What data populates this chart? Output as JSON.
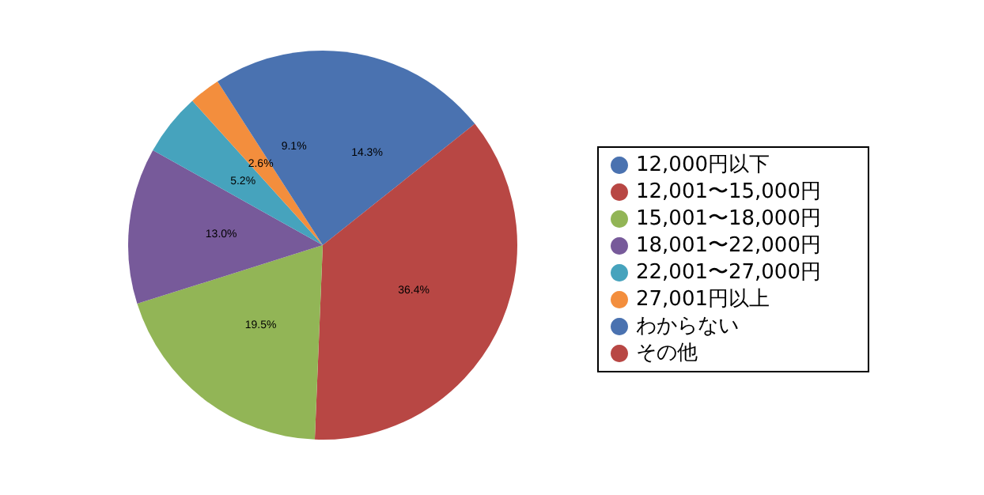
{
  "chart_data": {
    "type": "pie",
    "categories": [
      "12,000円以下",
      "12,001〜15,000円",
      "15,001〜18,000円",
      "18,001〜22,000円",
      "22,001〜27,000円",
      "27,001円以上",
      "わからない",
      "その他"
    ],
    "values": [
      14.3,
      36.4,
      19.5,
      13.0,
      5.2,
      2.6,
      9.1,
      0
    ],
    "value_labels": [
      "14.3%",
      "36.4%",
      "19.5%",
      "13.0%",
      "5.2%",
      "2.6%",
      "9.1%",
      null
    ],
    "colors": [
      "#4a72b0",
      "#b84744",
      "#92b556",
      "#775a9a",
      "#46a3bd",
      "#f38e3d",
      "#4a72b0",
      "#b84744"
    ],
    "legend": "right"
  }
}
